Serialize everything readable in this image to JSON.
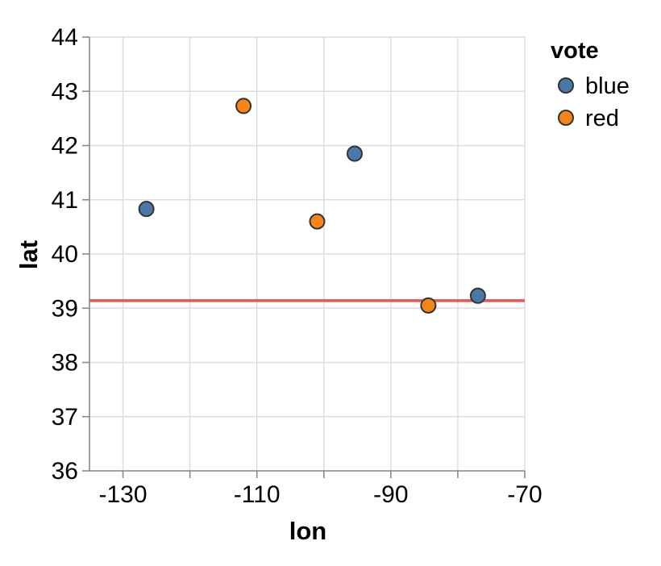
{
  "chart_data": {
    "type": "scatter",
    "xlabel": "lon",
    "ylabel": "lat",
    "xlim": [
      -135,
      -70
    ],
    "ylim": [
      36,
      44
    ],
    "x_ticks": [
      -130,
      -110,
      -90,
      -70
    ],
    "x_tick_labels": [
      "-130",
      "-110",
      "-90",
      "-70"
    ],
    "x_grid": [
      -130,
      -120,
      -110,
      -100,
      -90,
      -80,
      -70
    ],
    "y_ticks": [
      36,
      37,
      38,
      39,
      40,
      41,
      42,
      43,
      44
    ],
    "y_tick_labels": [
      "36",
      "37",
      "38",
      "39",
      "40",
      "41",
      "42",
      "43",
      "44"
    ],
    "grid": true,
    "legend": {
      "title": "vote",
      "placement": "right",
      "entries": [
        {
          "label": "blue",
          "color": "#4c78a8"
        },
        {
          "label": "red",
          "color": "#f58518"
        }
      ]
    },
    "series": [
      {
        "name": "blue",
        "color": "#4c78a8",
        "points": [
          {
            "x": -126.5,
            "y": 40.83
          },
          {
            "x": -95.4,
            "y": 41.85
          },
          {
            "x": -77.0,
            "y": 39.23
          }
        ]
      },
      {
        "name": "red",
        "color": "#f58518",
        "points": [
          {
            "x": -112.0,
            "y": 42.73
          },
          {
            "x": -101.0,
            "y": 40.6
          },
          {
            "x": -84.4,
            "y": 39.05
          }
        ]
      }
    ],
    "rule": {
      "y": 39.14,
      "color": "#e45756"
    }
  }
}
